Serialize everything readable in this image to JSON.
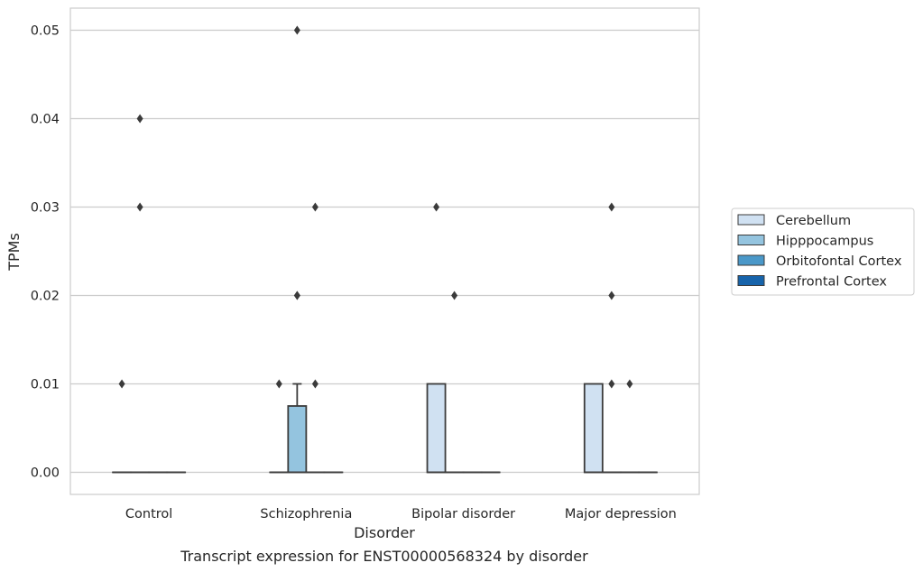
{
  "chart_data": {
    "type": "box",
    "xlabel": "Disorder",
    "ylabel": "TPMs",
    "caption": "Transcript expression for ENST00000568324 by disorder",
    "categories": [
      "Control",
      "Schizophrenia",
      "Bipolar disorder",
      "Major depression"
    ],
    "ylim": [
      -0.0025,
      0.0525
    ],
    "yticks": [
      0.0,
      0.01,
      0.02,
      0.03,
      0.04,
      0.05
    ],
    "ytick_labels": [
      "0.00",
      "0.01",
      "0.02",
      "0.03",
      "0.04",
      "0.05"
    ],
    "grid": true,
    "legend_position": "right",
    "series": [
      {
        "name": "Cerebellum",
        "color": "#d0e1f2",
        "boxes": [
          {
            "q1": 0,
            "median": 0,
            "q3": 0,
            "whisker_low": 0,
            "whisker_high": 0,
            "outliers": [
              0.01
            ]
          },
          {
            "q1": 0,
            "median": 0,
            "q3": 0,
            "whisker_low": 0,
            "whisker_high": 0,
            "outliers": [
              0.01
            ]
          },
          {
            "q1": 0,
            "median": 0,
            "q3": 0.01,
            "whisker_low": 0,
            "whisker_high": 0.01,
            "outliers": [
              0.03
            ]
          },
          {
            "q1": 0,
            "median": 0,
            "q3": 0.01,
            "whisker_low": 0,
            "whisker_high": 0.01,
            "outliers": []
          }
        ]
      },
      {
        "name": "Hipppocampus",
        "color": "#94c4df",
        "boxes": [
          {
            "q1": 0,
            "median": 0,
            "q3": 0,
            "whisker_low": 0,
            "whisker_high": 0,
            "outliers": [
              0.03,
              0.04
            ]
          },
          {
            "q1": 0,
            "median": 0,
            "q3": 0.0075,
            "whisker_low": 0,
            "whisker_high": 0.01,
            "outliers": [
              0.02,
              0.02,
              0.05
            ]
          },
          {
            "q1": 0,
            "median": 0,
            "q3": 0,
            "whisker_low": 0,
            "whisker_high": 0,
            "outliers": [
              0.02
            ]
          },
          {
            "q1": 0,
            "median": 0,
            "q3": 0,
            "whisker_low": 0,
            "whisker_high": 0,
            "outliers": [
              0.01,
              0.02,
              0.03
            ]
          }
        ]
      },
      {
        "name": "Orbitofontal Cortex",
        "color": "#4a98c9",
        "boxes": [
          {
            "q1": 0,
            "median": 0,
            "q3": 0,
            "whisker_low": 0,
            "whisker_high": 0,
            "outliers": []
          },
          {
            "q1": 0,
            "median": 0,
            "q3": 0,
            "whisker_low": 0,
            "whisker_high": 0,
            "outliers": [
              0.01,
              0.03
            ]
          },
          {
            "q1": 0,
            "median": 0,
            "q3": 0,
            "whisker_low": 0,
            "whisker_high": 0,
            "outliers": []
          },
          {
            "q1": 0,
            "median": 0,
            "q3": 0,
            "whisker_low": 0,
            "whisker_high": 0,
            "outliers": [
              0.01
            ]
          }
        ]
      },
      {
        "name": "Prefrontal Cortex",
        "color": "#1764ab",
        "boxes": [
          {
            "q1": 0,
            "median": 0,
            "q3": 0,
            "whisker_low": 0,
            "whisker_high": 0,
            "outliers": []
          },
          {
            "q1": 0,
            "median": 0,
            "q3": 0,
            "whisker_low": 0,
            "whisker_high": 0,
            "outliers": []
          },
          {
            "q1": 0,
            "median": 0,
            "q3": 0,
            "whisker_low": 0,
            "whisker_high": 0,
            "outliers": []
          },
          {
            "q1": 0,
            "median": 0,
            "q3": 0,
            "whisker_low": 0,
            "whisker_high": 0,
            "outliers": []
          }
        ]
      }
    ]
  }
}
